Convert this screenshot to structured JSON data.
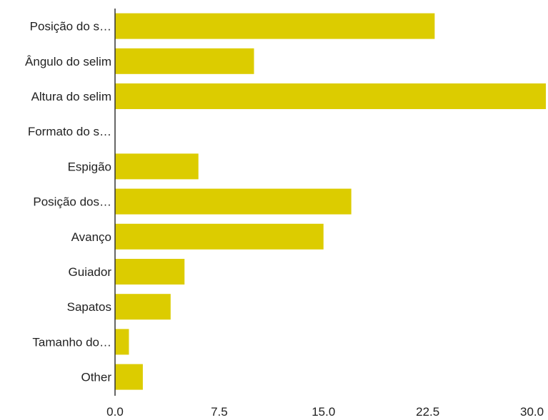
{
  "chart_data": {
    "type": "bar",
    "orientation": "horizontal",
    "categories": [
      "Posição do s…",
      "Ângulo do selim",
      "Altura do selim",
      "Formato do s…",
      "Espigão",
      "Posição dos…",
      "Avanço",
      "Guiador",
      "Sapatos",
      "Tamanho do…",
      "Other"
    ],
    "values": [
      23,
      10,
      31,
      0,
      6,
      17,
      15,
      5,
      4,
      1,
      2
    ],
    "xlim": [
      0,
      31
    ],
    "xticks": [
      "0.0",
      "7.5",
      "15.0",
      "22.5",
      "30.0"
    ],
    "xtick_values": [
      0,
      7.5,
      15,
      22.5,
      30
    ],
    "bar_color": "#dccc00",
    "axis_color": "#333333",
    "grid": false,
    "legend": "none"
  }
}
